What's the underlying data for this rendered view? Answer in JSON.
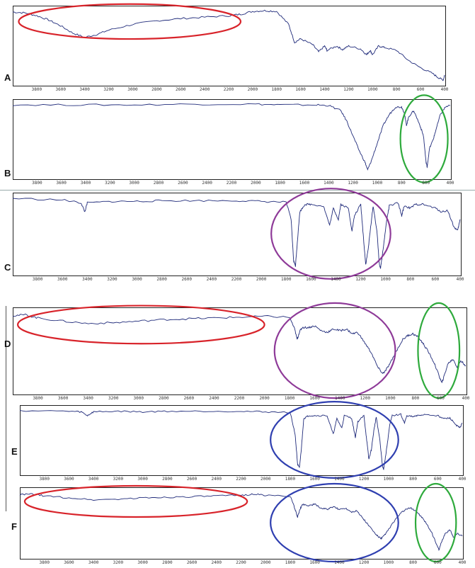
{
  "chart_data": {
    "type": "line",
    "x_axis": {
      "reversed": true,
      "xlim": [
        4000,
        400
      ],
      "tick_labels": [
        "3800",
        "3600",
        "3400",
        "3200",
        "3000",
        "2800",
        "2600",
        "2400",
        "2200",
        "2000",
        "1800",
        "1600",
        "1400",
        "1200",
        "1000",
        "800",
        "600",
        "400"
      ]
    },
    "line_color": "#1f2a7a",
    "panels": [
      {
        "label": "A",
        "series": [
          [
            4000,
            0.97
          ],
          [
            3900,
            0.96
          ],
          [
            3800,
            0.92
          ],
          [
            3700,
            0.86
          ],
          [
            3600,
            0.78
          ],
          [
            3500,
            0.68
          ],
          [
            3400,
            0.62
          ],
          [
            3300,
            0.66
          ],
          [
            3200,
            0.72
          ],
          [
            3000,
            0.8
          ],
          [
            2800,
            0.85
          ],
          [
            2600,
            0.88
          ],
          [
            2400,
            0.9
          ],
          [
            2200,
            0.92
          ],
          [
            2100,
            0.94
          ],
          [
            2000,
            0.98
          ],
          [
            1900,
            0.99
          ],
          [
            1800,
            0.98
          ],
          [
            1700,
            0.8
          ],
          [
            1650,
            0.55
          ],
          [
            1600,
            0.6
          ],
          [
            1500,
            0.52
          ],
          [
            1450,
            0.42
          ],
          [
            1400,
            0.5
          ],
          [
            1380,
            0.44
          ],
          [
            1300,
            0.5
          ],
          [
            1250,
            0.45
          ],
          [
            1200,
            0.5
          ],
          [
            1100,
            0.46
          ],
          [
            1050,
            0.38
          ],
          [
            1020,
            0.44
          ],
          [
            1000,
            0.38
          ],
          [
            950,
            0.5
          ],
          [
            900,
            0.48
          ],
          [
            800,
            0.44
          ],
          [
            700,
            0.3
          ],
          [
            600,
            0.2
          ],
          [
            500,
            0.12
          ],
          [
            450,
            0.06
          ],
          [
            410,
            0.03
          ],
          [
            400,
            0.1
          ]
        ],
        "highlights": [
          {
            "type": "ellipse",
            "color": "#d8232a",
            "x_range": [
              3950,
              2100
            ]
          }
        ]
      },
      {
        "label": "B",
        "series": [
          [
            4000,
            0.98
          ],
          [
            3500,
            0.98
          ],
          [
            3000,
            0.98
          ],
          [
            2500,
            0.99
          ],
          [
            2000,
            0.99
          ],
          [
            1800,
            0.98
          ],
          [
            1500,
            0.98
          ],
          [
            1400,
            0.97
          ],
          [
            1300,
            0.9
          ],
          [
            1250,
            0.75
          ],
          [
            1200,
            0.55
          ],
          [
            1150,
            0.35
          ],
          [
            1100,
            0.18
          ],
          [
            1080,
            0.08
          ],
          [
            1050,
            0.2
          ],
          [
            1000,
            0.45
          ],
          [
            950,
            0.7
          ],
          [
            900,
            0.85
          ],
          [
            850,
            0.95
          ],
          [
            800,
            0.95
          ],
          [
            780,
            0.88
          ],
          [
            760,
            0.7
          ],
          [
            740,
            0.82
          ],
          [
            700,
            0.9
          ],
          [
            650,
            0.7
          ],
          [
            620,
            0.55
          ],
          [
            600,
            0.2
          ],
          [
            590,
            0.12
          ],
          [
            570,
            0.38
          ],
          [
            540,
            0.5
          ],
          [
            520,
            0.62
          ],
          [
            480,
            0.85
          ],
          [
            440,
            0.95
          ],
          [
            400,
            0.97
          ]
        ],
        "highlights": [
          {
            "type": "ellipse",
            "color": "#2eaa3c",
            "x_range": [
              810,
              420
            ]
          }
        ]
      },
      {
        "label": "C",
        "series": [
          [
            4000,
            0.98
          ],
          [
            3600,
            0.96
          ],
          [
            3450,
            0.92
          ],
          [
            3420,
            0.8
          ],
          [
            3400,
            0.92
          ],
          [
            3200,
            0.94
          ],
          [
            3000,
            0.94
          ],
          [
            2800,
            0.95
          ],
          [
            2500,
            0.95
          ],
          [
            2200,
            0.95
          ],
          [
            2000,
            0.94
          ],
          [
            1800,
            0.93
          ],
          [
            1760,
            0.7
          ],
          [
            1740,
            0.15
          ],
          [
            1725,
            0.08
          ],
          [
            1710,
            0.4
          ],
          [
            1690,
            0.8
          ],
          [
            1650,
            0.9
          ],
          [
            1600,
            0.9
          ],
          [
            1500,
            0.88
          ],
          [
            1450,
            0.62
          ],
          [
            1420,
            0.85
          ],
          [
            1380,
            0.7
          ],
          [
            1360,
            0.9
          ],
          [
            1300,
            0.85
          ],
          [
            1270,
            0.55
          ],
          [
            1250,
            0.75
          ],
          [
            1200,
            0.9
          ],
          [
            1180,
            0.5
          ],
          [
            1160,
            0.1
          ],
          [
            1140,
            0.3
          ],
          [
            1120,
            0.6
          ],
          [
            1100,
            0.88
          ],
          [
            1070,
            0.55
          ],
          [
            1050,
            0.1
          ],
          [
            1040,
            0.05
          ],
          [
            1020,
            0.3
          ],
          [
            990,
            0.7
          ],
          [
            970,
            0.88
          ],
          [
            900,
            0.92
          ],
          [
            870,
            0.75
          ],
          [
            850,
            0.88
          ],
          [
            800,
            0.85
          ],
          [
            760,
            0.9
          ],
          [
            700,
            0.9
          ],
          [
            600,
            0.85
          ],
          [
            550,
            0.8
          ],
          [
            500,
            0.82
          ],
          [
            450,
            0.6
          ],
          [
            420,
            0.55
          ],
          [
            400,
            0.7
          ]
        ],
        "highlights": [
          {
            "type": "ellipse",
            "color": "#8e3a98",
            "x_range": [
              1920,
              960
            ]
          }
        ]
      },
      {
        "label": "D",
        "series": [
          [
            4000,
            0.95
          ],
          [
            3900,
            0.96
          ],
          [
            3800,
            0.92
          ],
          [
            3600,
            0.88
          ],
          [
            3400,
            0.85
          ],
          [
            3200,
            0.86
          ],
          [
            3000,
            0.88
          ],
          [
            2800,
            0.9
          ],
          [
            2600,
            0.91
          ],
          [
            2400,
            0.92
          ],
          [
            2200,
            0.93
          ],
          [
            2000,
            0.94
          ],
          [
            1800,
            0.93
          ],
          [
            1760,
            0.78
          ],
          [
            1740,
            0.65
          ],
          [
            1720,
            0.75
          ],
          [
            1700,
            0.8
          ],
          [
            1650,
            0.8
          ],
          [
            1600,
            0.82
          ],
          [
            1550,
            0.76
          ],
          [
            1500,
            0.74
          ],
          [
            1450,
            0.78
          ],
          [
            1400,
            0.76
          ],
          [
            1350,
            0.78
          ],
          [
            1300,
            0.72
          ],
          [
            1260,
            0.74
          ],
          [
            1200,
            0.6
          ],
          [
            1150,
            0.48
          ],
          [
            1100,
            0.3
          ],
          [
            1060,
            0.22
          ],
          [
            1040,
            0.25
          ],
          [
            1000,
            0.35
          ],
          [
            960,
            0.48
          ],
          [
            900,
            0.65
          ],
          [
            860,
            0.7
          ],
          [
            820,
            0.72
          ],
          [
            780,
            0.68
          ],
          [
            740,
            0.6
          ],
          [
            700,
            0.5
          ],
          [
            650,
            0.35
          ],
          [
            610,
            0.18
          ],
          [
            590,
            0.1
          ],
          [
            570,
            0.2
          ],
          [
            540,
            0.35
          ],
          [
            500,
            0.4
          ],
          [
            470,
            0.3
          ],
          [
            440,
            0.38
          ],
          [
            400,
            0.32
          ]
        ],
        "highlights": [
          {
            "type": "ellipse",
            "color": "#d8232a",
            "x_range": [
              3960,
              2000
            ]
          },
          {
            "type": "ellipse",
            "color": "#8e3a98",
            "x_range": [
              1920,
              960
            ]
          },
          {
            "type": "ellipse",
            "color": "#2eaa3c",
            "x_range": [
              780,
              450
            ]
          }
        ]
      },
      {
        "label": "E",
        "series": [
          [
            4000,
            0.98
          ],
          [
            3600,
            0.97
          ],
          [
            3500,
            0.96
          ],
          [
            3450,
            0.9
          ],
          [
            3400,
            0.96
          ],
          [
            3200,
            0.97
          ],
          [
            3000,
            0.96
          ],
          [
            2800,
            0.97
          ],
          [
            2500,
            0.97
          ],
          [
            2200,
            0.97
          ],
          [
            2000,
            0.96
          ],
          [
            1800,
            0.95
          ],
          [
            1760,
            0.6
          ],
          [
            1740,
            0.12
          ],
          [
            1725,
            0.06
          ],
          [
            1710,
            0.35
          ],
          [
            1690,
            0.85
          ],
          [
            1650,
            0.9
          ],
          [
            1600,
            0.9
          ],
          [
            1500,
            0.9
          ],
          [
            1450,
            0.6
          ],
          [
            1420,
            0.85
          ],
          [
            1380,
            0.7
          ],
          [
            1360,
            0.9
          ],
          [
            1300,
            0.86
          ],
          [
            1270,
            0.55
          ],
          [
            1250,
            0.8
          ],
          [
            1200,
            0.9
          ],
          [
            1180,
            0.55
          ],
          [
            1160,
            0.2
          ],
          [
            1140,
            0.35
          ],
          [
            1120,
            0.65
          ],
          [
            1100,
            0.88
          ],
          [
            1070,
            0.5
          ],
          [
            1050,
            0.1
          ],
          [
            1040,
            0.04
          ],
          [
            1020,
            0.3
          ],
          [
            990,
            0.75
          ],
          [
            970,
            0.9
          ],
          [
            900,
            0.92
          ],
          [
            870,
            0.78
          ],
          [
            850,
            0.9
          ],
          [
            800,
            0.88
          ],
          [
            760,
            0.9
          ],
          [
            700,
            0.92
          ],
          [
            600,
            0.9
          ],
          [
            550,
            0.85
          ],
          [
            500,
            0.86
          ],
          [
            450,
            0.75
          ],
          [
            420,
            0.7
          ],
          [
            400,
            0.78
          ]
        ],
        "highlights": [
          {
            "type": "ellipse",
            "color": "#2f3fb0",
            "x_range": [
              1960,
              920
            ]
          }
        ]
      },
      {
        "label": "F",
        "series": [
          [
            4000,
            0.95
          ],
          [
            3900,
            0.96
          ],
          [
            3800,
            0.93
          ],
          [
            3600,
            0.9
          ],
          [
            3400,
            0.87
          ],
          [
            3200,
            0.88
          ],
          [
            3000,
            0.9
          ],
          [
            2800,
            0.91
          ],
          [
            2600,
            0.92
          ],
          [
            2400,
            0.93
          ],
          [
            2200,
            0.94
          ],
          [
            2100,
            0.96
          ],
          [
            2000,
            0.94
          ],
          [
            1800,
            0.93
          ],
          [
            1760,
            0.72
          ],
          [
            1740,
            0.6
          ],
          [
            1720,
            0.72
          ],
          [
            1700,
            0.8
          ],
          [
            1650,
            0.78
          ],
          [
            1600,
            0.8
          ],
          [
            1550,
            0.74
          ],
          [
            1500,
            0.72
          ],
          [
            1450,
            0.76
          ],
          [
            1400,
            0.72
          ],
          [
            1350,
            0.74
          ],
          [
            1300,
            0.68
          ],
          [
            1260,
            0.7
          ],
          [
            1200,
            0.56
          ],
          [
            1150,
            0.44
          ],
          [
            1100,
            0.32
          ],
          [
            1060,
            0.26
          ],
          [
            1040,
            0.3
          ],
          [
            1000,
            0.4
          ],
          [
            960,
            0.52
          ],
          [
            900,
            0.66
          ],
          [
            860,
            0.72
          ],
          [
            820,
            0.74
          ],
          [
            780,
            0.7
          ],
          [
            740,
            0.62
          ],
          [
            700,
            0.52
          ],
          [
            650,
            0.36
          ],
          [
            610,
            0.18
          ],
          [
            590,
            0.08
          ],
          [
            570,
            0.2
          ],
          [
            540,
            0.34
          ],
          [
            500,
            0.4
          ],
          [
            470,
            0.28
          ],
          [
            440,
            0.34
          ],
          [
            400,
            0.3
          ]
        ],
        "highlights": [
          {
            "type": "ellipse",
            "color": "#d8232a",
            "x_range": [
              3960,
              2150
            ]
          },
          {
            "type": "ellipse",
            "color": "#2f3fb0",
            "x_range": [
              1960,
              920
            ]
          },
          {
            "type": "ellipse",
            "color": "#2eaa3c",
            "x_range": [
              780,
              450
            ]
          }
        ]
      }
    ]
  }
}
